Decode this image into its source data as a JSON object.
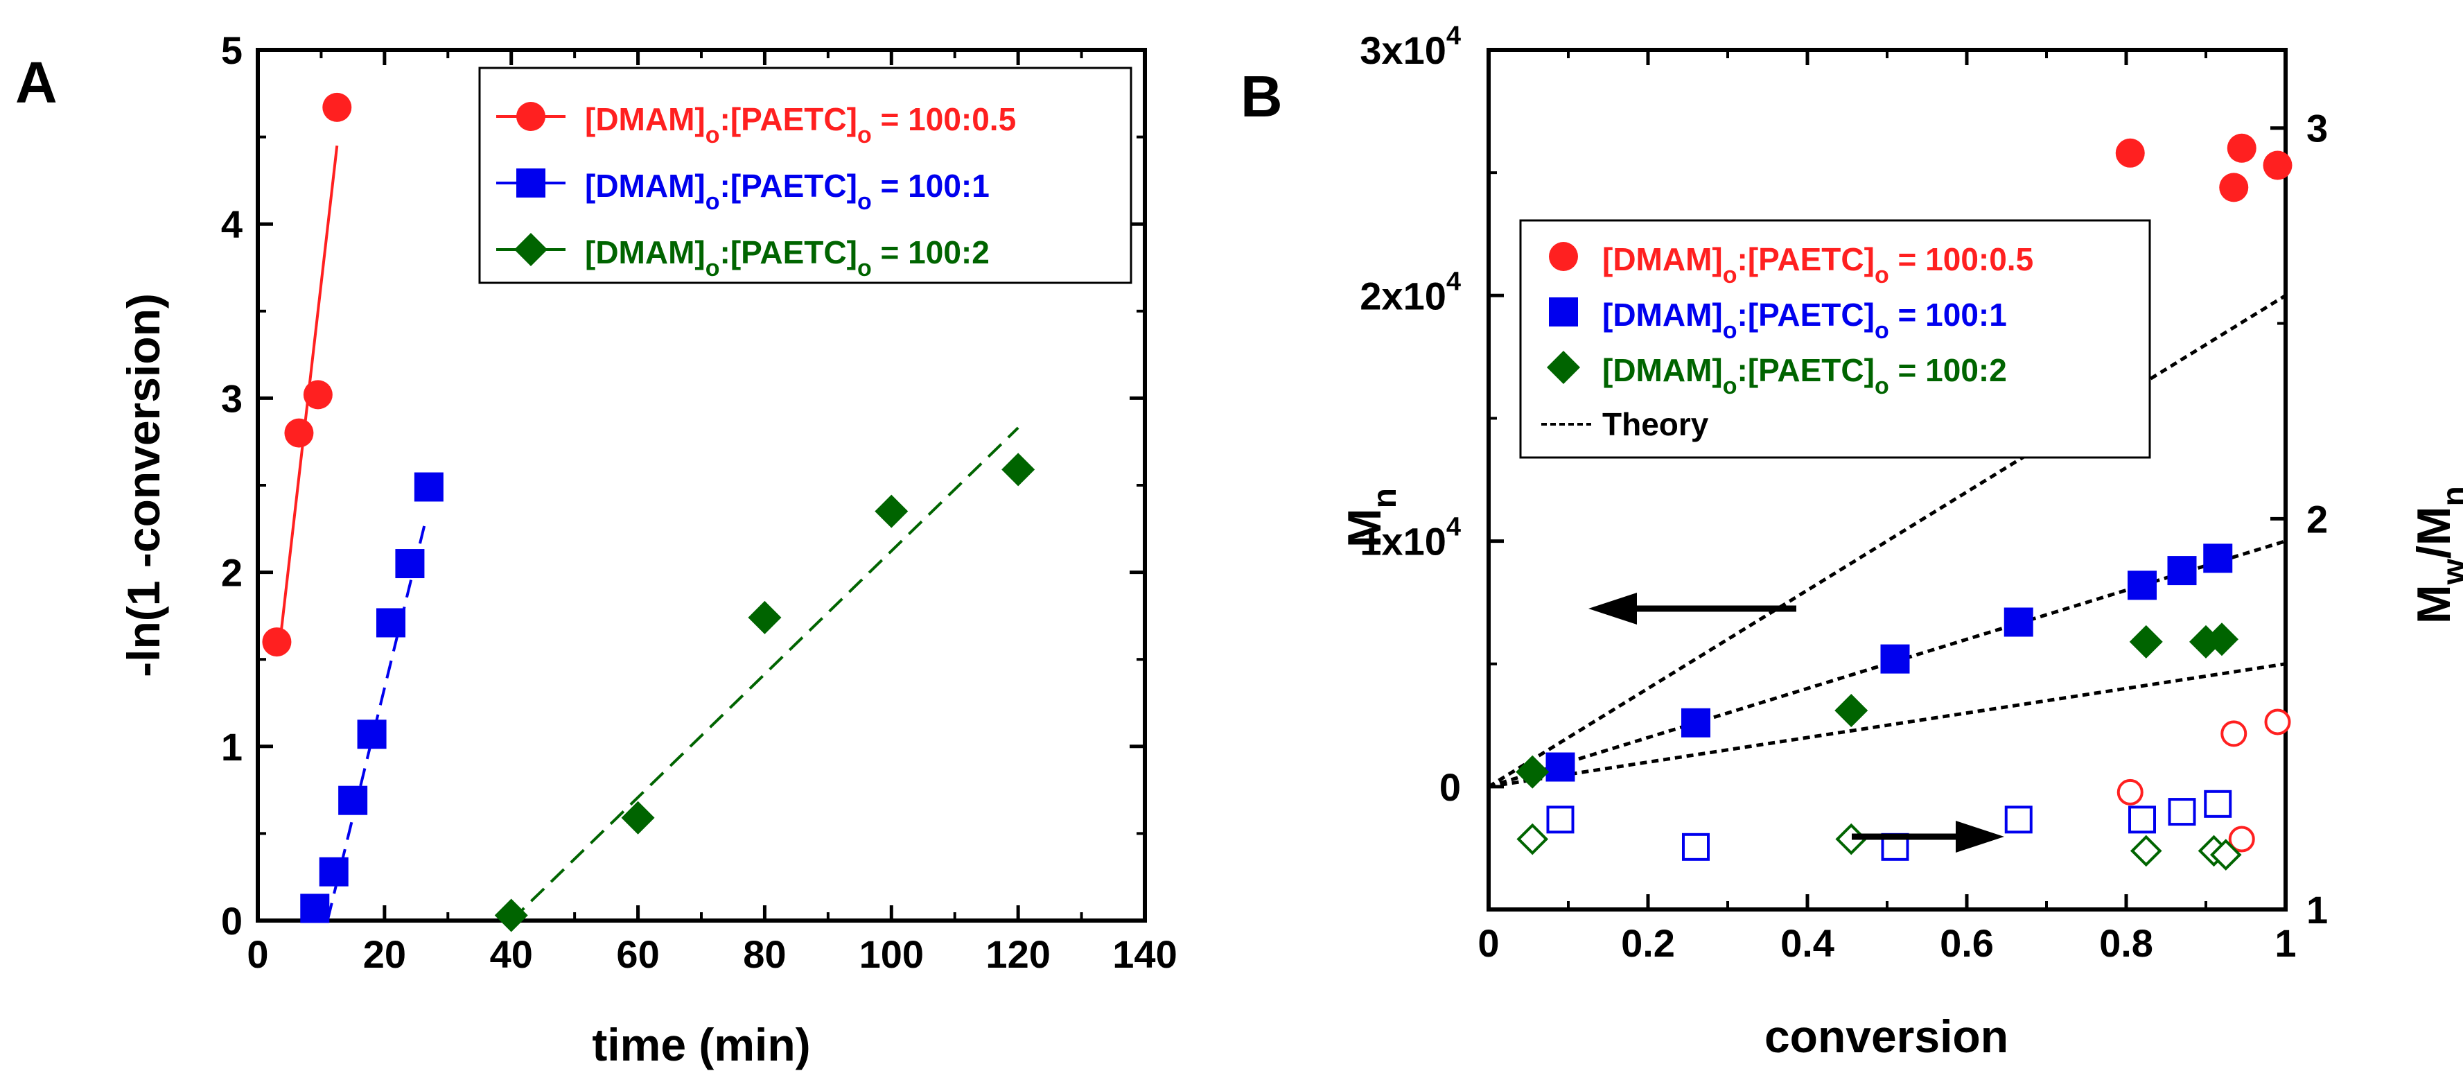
{
  "panels": {
    "a": {
      "letter": "A"
    },
    "b": {
      "letter": "B"
    }
  },
  "chart_data": [
    {
      "type": "scatter",
      "panel": "A",
      "xlabel": "time (min)",
      "ylabel": "-ln(1 -conversion)",
      "xlim": [
        0,
        140
      ],
      "ylim": [
        0,
        5
      ],
      "xticks": [
        0,
        20,
        40,
        60,
        80,
        100,
        120,
        140
      ],
      "yticks": [
        0,
        1,
        2,
        3,
        4,
        5
      ],
      "grid": false,
      "legend_position": "top-right",
      "series": [
        {
          "name_main": "[DMAM]",
          "name_sub1": "o",
          "name_mid": ":[PAETC]",
          "name_sub2": "o",
          "name_tail": "= 100:0.5",
          "color": "#ff2020",
          "marker": "circle",
          "line": "solid",
          "points": [
            [
              3,
              1.6
            ],
            [
              6.5,
              2.8
            ],
            [
              9.5,
              3.02
            ],
            [
              12.5,
              4.67
            ]
          ],
          "fit": [
            [
              3.5,
              1.6
            ],
            [
              12.5,
              4.45
            ]
          ]
        },
        {
          "name_main": "[DMAM]",
          "name_sub1": "o",
          "name_mid": ":[PAETC]",
          "name_sub2": "o",
          "name_tail": "= 100:1",
          "color": "#0000ee",
          "marker": "square",
          "line": "dashed",
          "points": [
            [
              9,
              0.07
            ],
            [
              12,
              0.28
            ],
            [
              15,
              0.69
            ],
            [
              18,
              1.07
            ],
            [
              21,
              1.71
            ],
            [
              24,
              2.05
            ],
            [
              27,
              2.49
            ]
          ],
          "fit": [
            [
              11,
              0.0
            ],
            [
              26.5,
              2.3
            ]
          ]
        },
        {
          "name_main": "[DMAM]",
          "name_sub1": "o",
          "name_mid": ":[PAETC]",
          "name_sub2": "o",
          "name_tail": "= 100:2",
          "color": "#006400",
          "marker": "diamond",
          "line": "dashed",
          "points": [
            [
              40,
              0.03
            ],
            [
              60,
              0.59
            ],
            [
              80,
              1.74
            ],
            [
              100,
              2.35
            ],
            [
              120,
              2.59
            ]
          ],
          "fit": [
            [
              40,
              0.0
            ],
            [
              120,
              2.83
            ]
          ]
        }
      ]
    },
    {
      "type": "scatter",
      "panel": "B",
      "xlabel": "conversion",
      "ylabel_left_main": "M",
      "ylabel_left_sub": "n",
      "ylabel_right_main1": "M",
      "ylabel_right_sub1": "w",
      "ylabel_right_mid": "/M",
      "ylabel_right_sub2": "n",
      "xlim": [
        0,
        1
      ],
      "ylim_left": [
        -5000,
        30000
      ],
      "ylim_right": [
        1,
        3.2
      ],
      "xticks": [
        "0",
        "0.2",
        "0.4",
        "0.6",
        "0.8",
        "1"
      ],
      "yticks_left": [
        {
          "value": 0,
          "main": "0",
          "exp": ""
        },
        {
          "value": 10000,
          "main": "1x10",
          "exp": "4"
        },
        {
          "value": 20000,
          "main": "2x10",
          "exp": "4"
        },
        {
          "value": 30000,
          "main": "3x10",
          "exp": "4"
        }
      ],
      "yticks_right": [
        "1",
        "2",
        "3"
      ],
      "grid": false,
      "legend_position": "upper-left",
      "series": [
        {
          "name_main": "[DMAM]",
          "name_sub1": "o",
          "name_mid": ":[PAETC]",
          "name_sub2": "o",
          "name_tail": "= 100:0.5",
          "color": "#ff2020",
          "marker": "circle",
          "mn": [
            [
              0.805,
              25800
            ],
            [
              0.935,
              24400
            ],
            [
              0.945,
              26000
            ],
            [
              0.99,
              25300
            ]
          ],
          "dispersity": [
            [
              0.805,
              1.3
            ],
            [
              0.935,
              1.45
            ],
            [
              0.945,
              1.18
            ],
            [
              0.99,
              1.48
            ]
          ]
        },
        {
          "name_main": "[DMAM]",
          "name_sub1": "o",
          "name_mid": ":[PAETC]",
          "name_sub2": "o",
          "name_tail": "= 100:1",
          "color": "#0000ee",
          "marker": "square",
          "mn": [
            [
              0.09,
              800
            ],
            [
              0.26,
              2600
            ],
            [
              0.51,
              5200
            ],
            [
              0.665,
              6700
            ],
            [
              0.82,
              8200
            ],
            [
              0.87,
              8800
            ],
            [
              0.915,
              9300
            ]
          ],
          "dispersity": [
            [
              0.09,
              1.23
            ],
            [
              0.26,
              1.16
            ],
            [
              0.51,
              1.16
            ],
            [
              0.665,
              1.23
            ],
            [
              0.82,
              1.23
            ],
            [
              0.87,
              1.25
            ],
            [
              0.915,
              1.27
            ]
          ]
        },
        {
          "name_main": "[DMAM]",
          "name_sub1": "o",
          "name_mid": ":[PAETC]",
          "name_sub2": "o",
          "name_tail": "= 100:2",
          "color": "#006400",
          "marker": "diamond",
          "mn": [
            [
              0.055,
              600
            ],
            [
              0.455,
              3100
            ],
            [
              0.825,
              5900
            ],
            [
              0.9,
              5900
            ],
            [
              0.92,
              6000
            ]
          ],
          "dispersity": [
            [
              0.055,
              1.18
            ],
            [
              0.455,
              1.18
            ],
            [
              0.825,
              1.15
            ],
            [
              0.91,
              1.15
            ],
            [
              0.925,
              1.14
            ]
          ]
        }
      ],
      "theory_label": "Theory",
      "theory_lines": [
        [
          [
            0,
            0
          ],
          [
            1,
            20000
          ]
        ],
        [
          [
            0,
            0
          ],
          [
            1,
            10000
          ]
        ],
        [
          [
            0,
            0
          ],
          [
            1,
            5000
          ]
        ]
      ]
    }
  ]
}
